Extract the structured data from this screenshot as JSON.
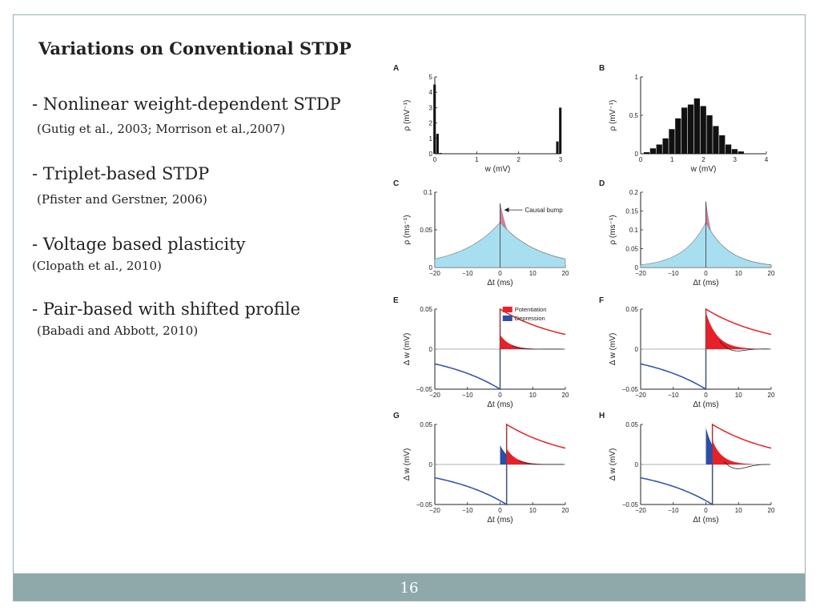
{
  "slide": {
    "title": "Variations on Conventional STDP",
    "page_number": "16",
    "bullets": [
      {
        "text": "- Nonlinear weight-dependent STDP",
        "citation": "(Gutig et al., 2003; Morrison et al.,2007)"
      },
      {
        "text": "- Triplet-based STDP",
        "citation": "(Pfister and Gerstner, 2006)"
      },
      {
        "text": "- Voltage based plasticity",
        "citation": "(Clopath et al., 2010)"
      },
      {
        "text": "- Pair-based with shifted profile",
        "citation": "(Babadi and Abbott, 2010)"
      }
    ]
  },
  "colors": {
    "bar": "#111111",
    "blue_fill": "#a8dff0",
    "pink_fill": "#e07aa0",
    "potentiation": "#e8202a",
    "depression": "#2d4ea8",
    "frame": "#9aaeb0",
    "footer": "#8fa9aa"
  },
  "chart_data": [
    {
      "panel": "A",
      "type": "bar",
      "xlabel": "w (mV)",
      "ylabel": "ρ (mV⁻¹)",
      "xlim": [
        0,
        3
      ],
      "ylim": [
        0,
        5
      ],
      "xticks": [
        "0",
        "1",
        "2",
        "3"
      ],
      "yticks": [
        "0",
        "1",
        "2",
        "3",
        "4",
        "5"
      ],
      "bar_width": 0.07,
      "x": [
        0.0,
        0.07,
        0.14,
        2.93,
        3.0
      ],
      "values": [
        4.5,
        1.3,
        0.05,
        0.8,
        3.0
      ]
    },
    {
      "panel": "B",
      "type": "bar",
      "xlabel": "w (mV)",
      "ylabel": "ρ (mV⁻¹)",
      "xlim": [
        0,
        4
      ],
      "ylim": [
        0,
        1
      ],
      "xticks": [
        "0",
        "1",
        "2",
        "3",
        "4"
      ],
      "yticks": [
        "0",
        "0.5",
        "1"
      ],
      "bar_width": 0.2,
      "x": [
        0.2,
        0.4,
        0.6,
        0.8,
        1.0,
        1.2,
        1.4,
        1.6,
        1.8,
        2.0,
        2.2,
        2.4,
        2.6,
        2.8,
        3.0,
        3.2
      ],
      "values": [
        0.02,
        0.07,
        0.12,
        0.2,
        0.32,
        0.46,
        0.6,
        0.64,
        0.72,
        0.62,
        0.5,
        0.36,
        0.24,
        0.12,
        0.06,
        0.03
      ]
    },
    {
      "panel": "C",
      "type": "area",
      "xlabel": "Δt (ms)",
      "ylabel": "ρ (ms⁻¹)",
      "xlim": [
        -20,
        20
      ],
      "ylim": [
        0,
        0.1
      ],
      "xticks": [
        "−20",
        "−10",
        "0",
        "10",
        "20"
      ],
      "yticks": [
        "0",
        "0.05",
        "0.1"
      ],
      "base_peak": 0.06,
      "tau": 12,
      "bump_peak": 0.085,
      "bump_tau": 4,
      "annotation": "Causal bump"
    },
    {
      "panel": "D",
      "type": "area",
      "xlabel": "Δt (ms)",
      "ylabel": "ρ (ms⁻¹)",
      "xlim": [
        -20,
        20
      ],
      "ylim": [
        0,
        0.2
      ],
      "xticks": [
        "−20",
        "−10",
        "0",
        "10",
        "20"
      ],
      "yticks": [
        "0",
        "0.05",
        "0.1",
        "0.15",
        "0.2"
      ],
      "base_peak": 0.12,
      "tau": 7,
      "bump_peak": 0.175,
      "bump_tau": 2.5
    },
    {
      "panel": "E",
      "type": "line",
      "xlabel": "Δt (ms)",
      "ylabel": "Δ w (mV)",
      "xlim": [
        -20,
        20
      ],
      "ylim": [
        -0.05,
        0.05
      ],
      "xticks": [
        "−20",
        "−10",
        "0",
        "10",
        "20"
      ],
      "yticks": [
        "−0.05",
        "0",
        "0.05"
      ],
      "shift": 0,
      "potentiation": {
        "amp": 0.05,
        "tau": 20
      },
      "depression": {
        "amp": -0.05,
        "tau": 20
      },
      "filled": {
        "peak": 0.018,
        "tau": 3,
        "under": -0.001
      },
      "legend": [
        "Potentiation",
        "Depression"
      ]
    },
    {
      "panel": "F",
      "type": "line",
      "xlabel": "Δt (ms)",
      "ylabel": "Δ w (mV)",
      "xlim": [
        -20,
        20
      ],
      "ylim": [
        -0.05,
        0.05
      ],
      "xticks": [
        "−20",
        "−10",
        "0",
        "10",
        "20"
      ],
      "yticks": [
        "−0.05",
        "0",
        "0.05"
      ],
      "shift": 0,
      "potentiation": {
        "amp": 0.05,
        "tau": 20
      },
      "depression": {
        "amp": -0.05,
        "tau": 20
      },
      "filled": {
        "peak": 0.046,
        "tau": 3.5,
        "under": -0.006
      }
    },
    {
      "panel": "G",
      "type": "line",
      "xlabel": "Δt (ms)",
      "ylabel": "Δ w (mV)",
      "xlim": [
        -20,
        20
      ],
      "ylim": [
        -0.05,
        0.05
      ],
      "xticks": [
        "−20",
        "−10",
        "0",
        "10",
        "20"
      ],
      "yticks": [
        "−0.05",
        "0",
        "0.05"
      ],
      "shift": 2,
      "potentiation": {
        "amp": 0.05,
        "tau": 20
      },
      "depression": {
        "amp": -0.05,
        "tau": 20
      },
      "filled": {
        "peak": 0.02,
        "tau": 3,
        "under": -0.001,
        "neg_peak": 0.024
      }
    },
    {
      "panel": "H",
      "type": "line",
      "xlabel": "Δt (ms)",
      "ylabel": "Δ w (mV)",
      "xlim": [
        -20,
        20
      ],
      "ylim": [
        -0.05,
        0.05
      ],
      "xticks": [
        "−20",
        "−10",
        "0",
        "10",
        "20"
      ],
      "yticks": [
        "−0.05",
        "0",
        "0.05"
      ],
      "shift": 2,
      "potentiation": {
        "amp": 0.05,
        "tau": 20
      },
      "depression": {
        "amp": -0.05,
        "tau": 20
      },
      "filled": {
        "peak": 0.03,
        "tau": 3,
        "under": -0.008,
        "neg_peak": 0.046
      }
    }
  ]
}
